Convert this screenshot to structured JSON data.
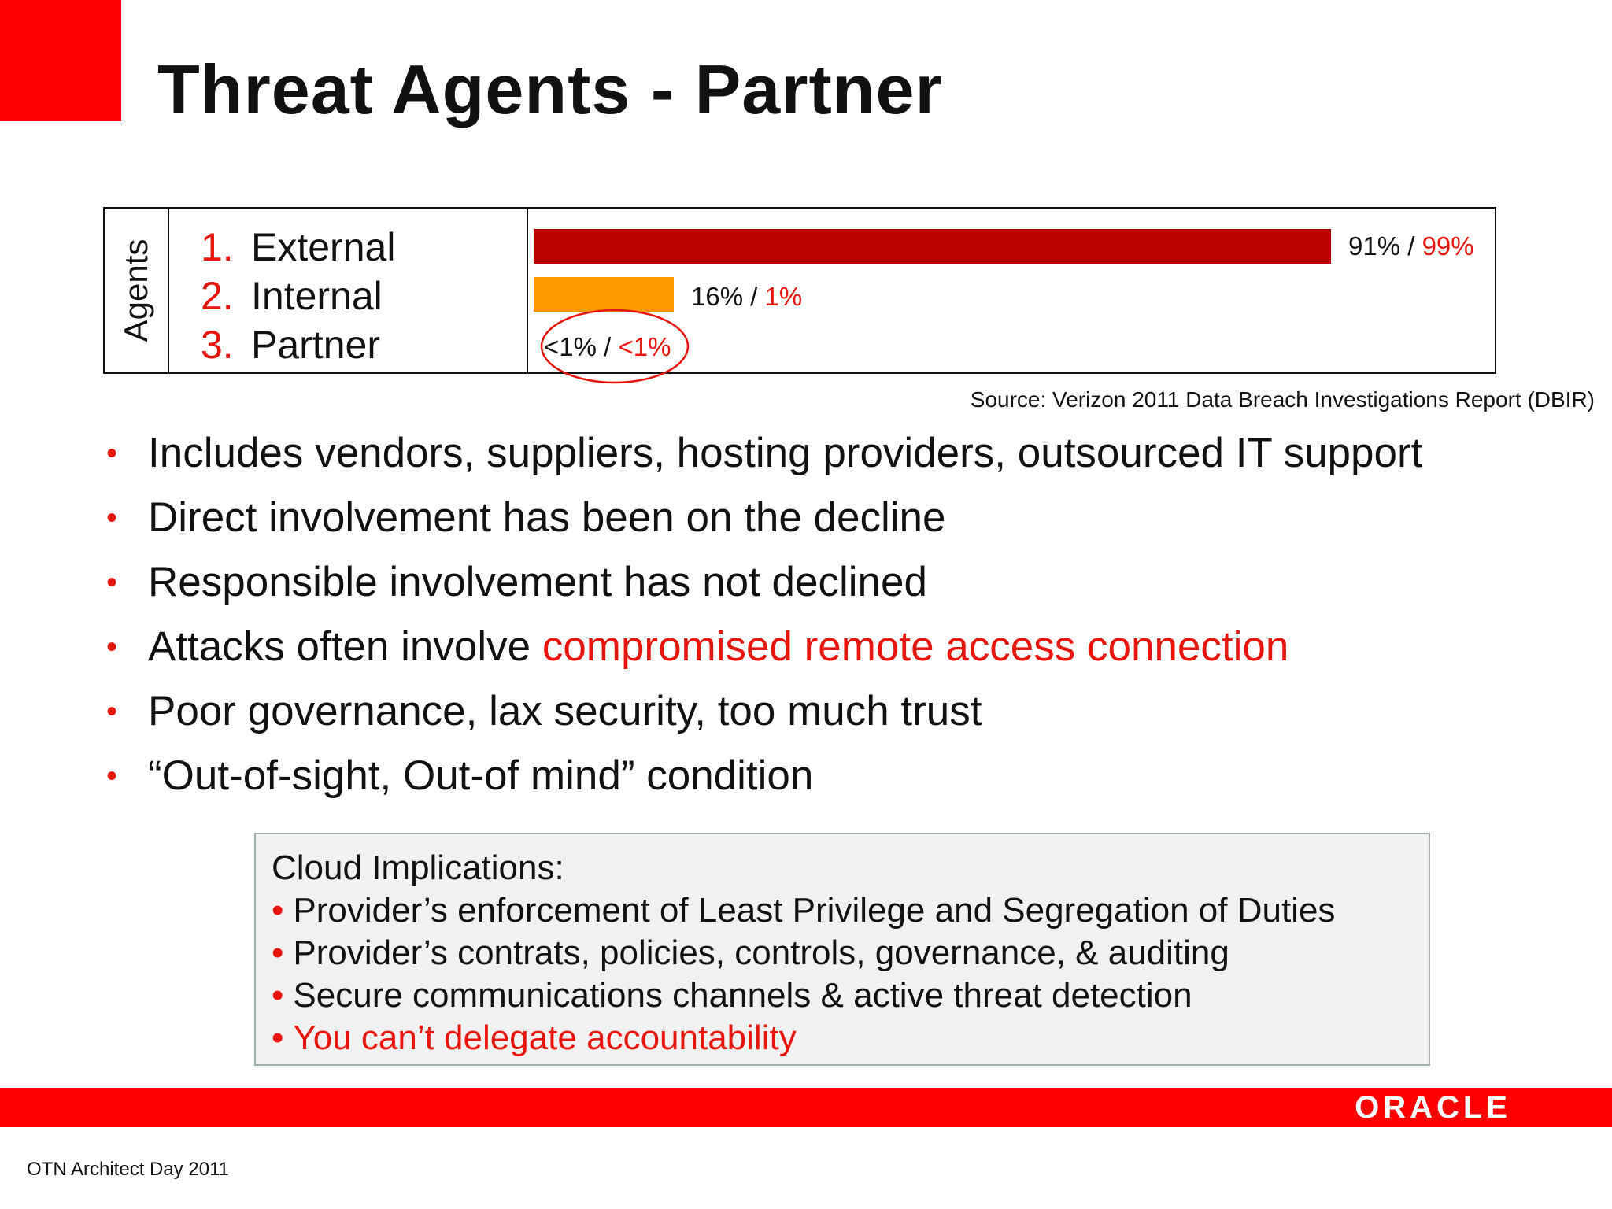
{
  "slide": {
    "title": "Threat Agents - Partner",
    "source": "Source: Verizon 2011 Data Breach Investigations Report (DBIR)",
    "footer": "OTN Architect Day 2011",
    "logo": "ORACLE"
  },
  "agents": {
    "axis_label": "Agents",
    "items": [
      {
        "num": "1.",
        "label": "External"
      },
      {
        "num": "2.",
        "label": "Internal"
      },
      {
        "num": "3.",
        "label": "Partner"
      }
    ]
  },
  "chart_data": {
    "type": "bar",
    "orientation": "horizontal",
    "categories": [
      "External",
      "Internal",
      "Partner"
    ],
    "series": [
      {
        "values": [
          91,
          16,
          0.5
        ]
      },
      {
        "values": [
          99,
          1,
          0.5
        ]
      }
    ],
    "bar_values": [
      91,
      16,
      0
    ],
    "labels": [
      {
        "first": "91%",
        "sep": " / ",
        "second": "99%"
      },
      {
        "first": "16%",
        "sep": " / ",
        "second": "1%"
      },
      {
        "first": "<1%",
        "sep": " / ",
        "second": "<1%"
      }
    ],
    "bar_colors": [
      "#bb0000",
      "#ff9900",
      "#ffffff"
    ],
    "highlight": "Partner",
    "xlim": [
      0,
      100
    ]
  },
  "bullets": [
    {
      "text": "Includes vendors, suppliers, hosting providers, outsourced IT support",
      "highlight": ""
    },
    {
      "text": "Direct involvement has been on the decline",
      "highlight": ""
    },
    {
      "text": "Responsible involvement has not declined",
      "highlight": ""
    },
    {
      "text": "Attacks often involve ",
      "highlight": "compromised remote access connection"
    },
    {
      "text": "Poor governance, lax security, too much trust",
      "highlight": ""
    },
    {
      "text": "“Out-of-sight, Out-of mind” condition",
      "highlight": ""
    }
  ],
  "cloud": {
    "heading": "Cloud Implications:",
    "items": [
      {
        "text": "Provider’s enforcement of Least Privilege and Segregation of Duties",
        "red": false
      },
      {
        "text": "Provider’s contrats, policies, controls, governance, & auditing",
        "red": false
      },
      {
        "text": "Secure communications channels & active threat detection",
        "red": false
      },
      {
        "text": "You can’t delegate accountability",
        "red": true
      }
    ]
  },
  "colors": {
    "accent": "#ff0000",
    "highlight_text": "#e8150f",
    "external_bar": "#bb0000",
    "internal_bar": "#ff9900"
  }
}
